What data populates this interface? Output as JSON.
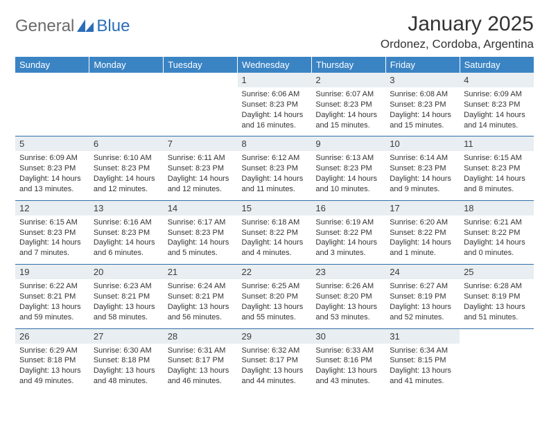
{
  "logo": {
    "general": "General",
    "blue": "Blue"
  },
  "title": "January 2025",
  "location": "Ordonez, Cordoba, Argentina",
  "colors": {
    "headerBg": "#3b84c4",
    "headerText": "#ffffff",
    "dayNumBg": "#e9eef2",
    "border": "#2f6fa8",
    "text": "#333333"
  },
  "dayHeaders": [
    "Sunday",
    "Monday",
    "Tuesday",
    "Wednesday",
    "Thursday",
    "Friday",
    "Saturday"
  ],
  "weeks": [
    [
      null,
      null,
      null,
      {
        "n": "1",
        "sr": "Sunrise: 6:06 AM",
        "ss": "Sunset: 8:23 PM",
        "dl": "Daylight: 14 hours and 16 minutes."
      },
      {
        "n": "2",
        "sr": "Sunrise: 6:07 AM",
        "ss": "Sunset: 8:23 PM",
        "dl": "Daylight: 14 hours and 15 minutes."
      },
      {
        "n": "3",
        "sr": "Sunrise: 6:08 AM",
        "ss": "Sunset: 8:23 PM",
        "dl": "Daylight: 14 hours and 15 minutes."
      },
      {
        "n": "4",
        "sr": "Sunrise: 6:09 AM",
        "ss": "Sunset: 8:23 PM",
        "dl": "Daylight: 14 hours and 14 minutes."
      }
    ],
    [
      {
        "n": "5",
        "sr": "Sunrise: 6:09 AM",
        "ss": "Sunset: 8:23 PM",
        "dl": "Daylight: 14 hours and 13 minutes."
      },
      {
        "n": "6",
        "sr": "Sunrise: 6:10 AM",
        "ss": "Sunset: 8:23 PM",
        "dl": "Daylight: 14 hours and 12 minutes."
      },
      {
        "n": "7",
        "sr": "Sunrise: 6:11 AM",
        "ss": "Sunset: 8:23 PM",
        "dl": "Daylight: 14 hours and 12 minutes."
      },
      {
        "n": "8",
        "sr": "Sunrise: 6:12 AM",
        "ss": "Sunset: 8:23 PM",
        "dl": "Daylight: 14 hours and 11 minutes."
      },
      {
        "n": "9",
        "sr": "Sunrise: 6:13 AM",
        "ss": "Sunset: 8:23 PM",
        "dl": "Daylight: 14 hours and 10 minutes."
      },
      {
        "n": "10",
        "sr": "Sunrise: 6:14 AM",
        "ss": "Sunset: 8:23 PM",
        "dl": "Daylight: 14 hours and 9 minutes."
      },
      {
        "n": "11",
        "sr": "Sunrise: 6:15 AM",
        "ss": "Sunset: 8:23 PM",
        "dl": "Daylight: 14 hours and 8 minutes."
      }
    ],
    [
      {
        "n": "12",
        "sr": "Sunrise: 6:15 AM",
        "ss": "Sunset: 8:23 PM",
        "dl": "Daylight: 14 hours and 7 minutes."
      },
      {
        "n": "13",
        "sr": "Sunrise: 6:16 AM",
        "ss": "Sunset: 8:23 PM",
        "dl": "Daylight: 14 hours and 6 minutes."
      },
      {
        "n": "14",
        "sr": "Sunrise: 6:17 AM",
        "ss": "Sunset: 8:23 PM",
        "dl": "Daylight: 14 hours and 5 minutes."
      },
      {
        "n": "15",
        "sr": "Sunrise: 6:18 AM",
        "ss": "Sunset: 8:22 PM",
        "dl": "Daylight: 14 hours and 4 minutes."
      },
      {
        "n": "16",
        "sr": "Sunrise: 6:19 AM",
        "ss": "Sunset: 8:22 PM",
        "dl": "Daylight: 14 hours and 3 minutes."
      },
      {
        "n": "17",
        "sr": "Sunrise: 6:20 AM",
        "ss": "Sunset: 8:22 PM",
        "dl": "Daylight: 14 hours and 1 minute."
      },
      {
        "n": "18",
        "sr": "Sunrise: 6:21 AM",
        "ss": "Sunset: 8:22 PM",
        "dl": "Daylight: 14 hours and 0 minutes."
      }
    ],
    [
      {
        "n": "19",
        "sr": "Sunrise: 6:22 AM",
        "ss": "Sunset: 8:21 PM",
        "dl": "Daylight: 13 hours and 59 minutes."
      },
      {
        "n": "20",
        "sr": "Sunrise: 6:23 AM",
        "ss": "Sunset: 8:21 PM",
        "dl": "Daylight: 13 hours and 58 minutes."
      },
      {
        "n": "21",
        "sr": "Sunrise: 6:24 AM",
        "ss": "Sunset: 8:21 PM",
        "dl": "Daylight: 13 hours and 56 minutes."
      },
      {
        "n": "22",
        "sr": "Sunrise: 6:25 AM",
        "ss": "Sunset: 8:20 PM",
        "dl": "Daylight: 13 hours and 55 minutes."
      },
      {
        "n": "23",
        "sr": "Sunrise: 6:26 AM",
        "ss": "Sunset: 8:20 PM",
        "dl": "Daylight: 13 hours and 53 minutes."
      },
      {
        "n": "24",
        "sr": "Sunrise: 6:27 AM",
        "ss": "Sunset: 8:19 PM",
        "dl": "Daylight: 13 hours and 52 minutes."
      },
      {
        "n": "25",
        "sr": "Sunrise: 6:28 AM",
        "ss": "Sunset: 8:19 PM",
        "dl": "Daylight: 13 hours and 51 minutes."
      }
    ],
    [
      {
        "n": "26",
        "sr": "Sunrise: 6:29 AM",
        "ss": "Sunset: 8:18 PM",
        "dl": "Daylight: 13 hours and 49 minutes."
      },
      {
        "n": "27",
        "sr": "Sunrise: 6:30 AM",
        "ss": "Sunset: 8:18 PM",
        "dl": "Daylight: 13 hours and 48 minutes."
      },
      {
        "n": "28",
        "sr": "Sunrise: 6:31 AM",
        "ss": "Sunset: 8:17 PM",
        "dl": "Daylight: 13 hours and 46 minutes."
      },
      {
        "n": "29",
        "sr": "Sunrise: 6:32 AM",
        "ss": "Sunset: 8:17 PM",
        "dl": "Daylight: 13 hours and 44 minutes."
      },
      {
        "n": "30",
        "sr": "Sunrise: 6:33 AM",
        "ss": "Sunset: 8:16 PM",
        "dl": "Daylight: 13 hours and 43 minutes."
      },
      {
        "n": "31",
        "sr": "Sunrise: 6:34 AM",
        "ss": "Sunset: 8:15 PM",
        "dl": "Daylight: 13 hours and 41 minutes."
      },
      null
    ]
  ]
}
